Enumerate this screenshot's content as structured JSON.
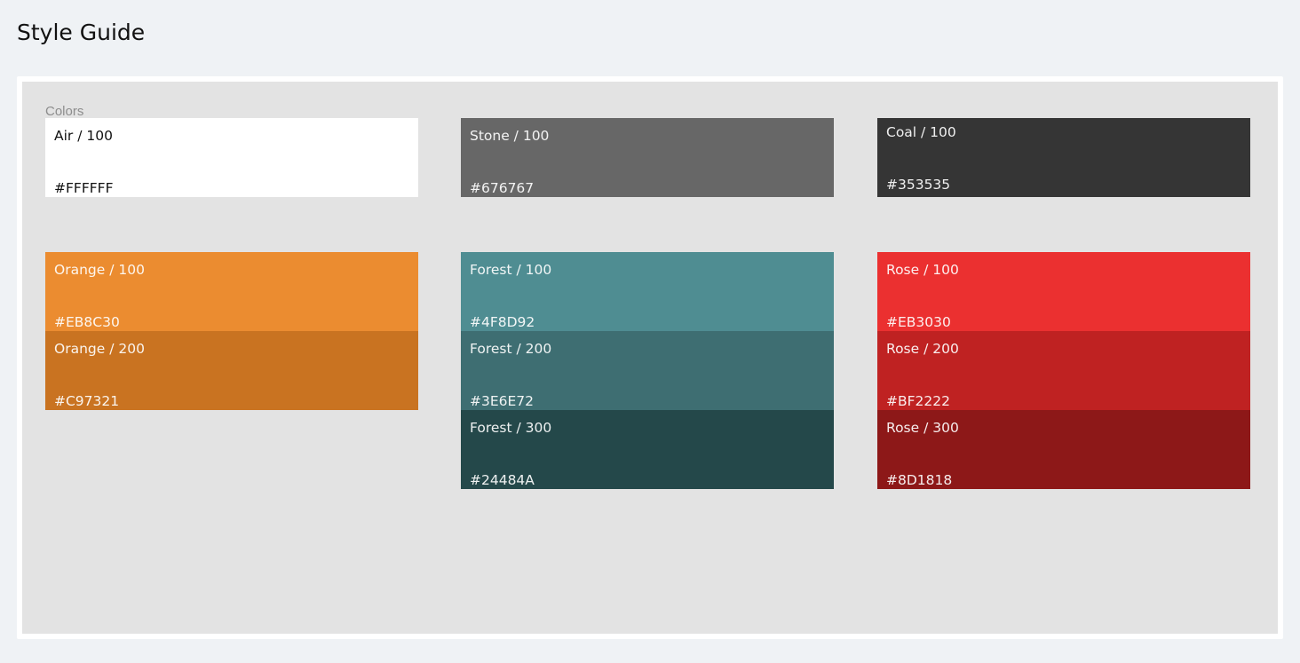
{
  "page": {
    "title": "Style Guide"
  },
  "colors_section": {
    "label": "Colors"
  },
  "swatches": {
    "air_100": {
      "name": "Air / 100",
      "hex": "#FFFFFF",
      "color": "#FFFFFF"
    },
    "stone_100": {
      "name": "Stone / 100",
      "hex": "#676767",
      "color": "#676767"
    },
    "coal_100": {
      "name": "Coal / 100",
      "hex": "#353535",
      "color": "#353535"
    },
    "orange_100": {
      "name": "Orange / 100",
      "hex": "#EB8C30",
      "color": "#EB8C30"
    },
    "orange_200": {
      "name": "Orange / 200",
      "hex": "#C97321",
      "color": "#C97321"
    },
    "forest_100": {
      "name": "Forest / 100",
      "hex": "#4F8D92",
      "color": "#4F8D92"
    },
    "forest_200": {
      "name": "Forest / 200",
      "hex": "#3E6E72",
      "color": "#3E6E72"
    },
    "forest_300": {
      "name": "Forest / 300",
      "hex": "#24484A",
      "color": "#24484A"
    },
    "rose_100": {
      "name": "Rose / 100",
      "hex": "#EB3030",
      "color": "#EB3030"
    },
    "rose_200": {
      "name": "Rose / 200",
      "hex": "#BF2222",
      "color": "#BF2222"
    },
    "rose_300": {
      "name": "Rose / 300",
      "hex": "#8D1818",
      "color": "#8D1818"
    }
  }
}
